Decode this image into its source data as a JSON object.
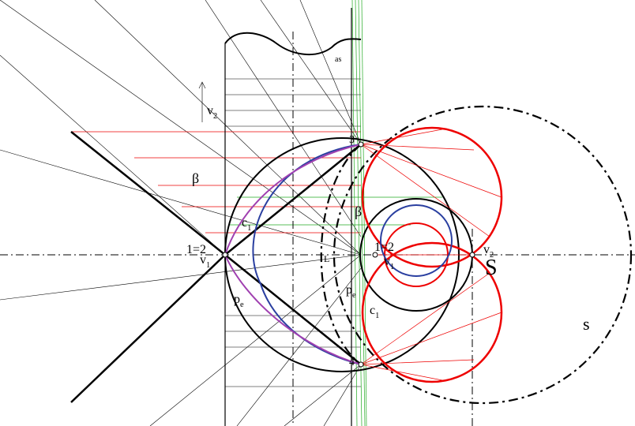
{
  "labels": [
    {
      "text": "as"
    },
    {
      "text": "v",
      "sub": "2"
    },
    {
      "text": "β"
    },
    {
      "text": "β"
    },
    {
      "text": "c",
      "sub": "1"
    },
    {
      "text": "c",
      "sub": "1"
    },
    {
      "text": "1=2"
    },
    {
      "text": "v",
      "sub": "1"
    },
    {
      "text": "1=2"
    },
    {
      "text": "v",
      "sub": "1"
    },
    {
      "text": "L"
    },
    {
      "text": "p",
      "sub": "e"
    },
    {
      "text": "p",
      "sub": "e"
    },
    {
      "text": "3"
    },
    {
      "text": "4"
    },
    {
      "text": "v",
      "sub": "2"
    },
    {
      "text": "S"
    },
    {
      "text": "s"
    }
  ]
}
